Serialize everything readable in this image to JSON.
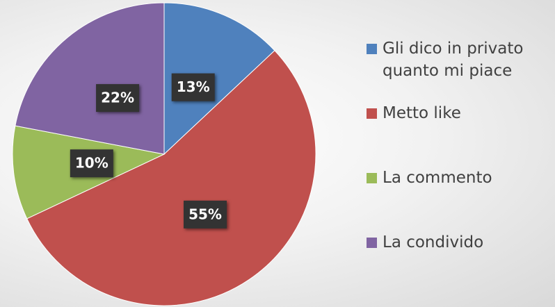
{
  "chart_data": {
    "type": "pie",
    "categories": [
      "Gli dico in privato quanto mi piace",
      "Metto like",
      "La commento",
      "La condivido"
    ],
    "values": [
      13,
      55,
      10,
      22
    ],
    "value_labels": [
      "13%",
      "55%",
      "10%",
      "22%"
    ],
    "colors": [
      "#4f81bd",
      "#c0504d",
      "#9bbb59",
      "#8064a2"
    ],
    "legend": "right"
  }
}
